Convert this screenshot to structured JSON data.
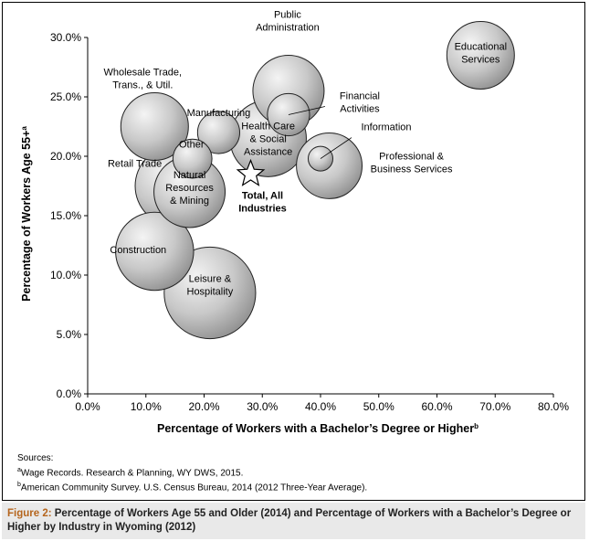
{
  "chart_data": {
    "type": "scatter",
    "variant": "bubble",
    "xlabel": "Percentage of Workers with a Bachelor’s Degree or Higher",
    "xlabel_sup": "b",
    "ylabel": "Percentage of Workers Age 55+",
    "ylabel_sup": "a",
    "xlim": [
      0,
      80
    ],
    "ylim": [
      0,
      30
    ],
    "x_ticks": [
      "0.0%",
      "10.0%",
      "20.0%",
      "30.0%",
      "40.0%",
      "50.0%",
      "60.0%",
      "70.0%",
      "80.0%"
    ],
    "y_ticks": [
      "0.0%",
      "5.0%",
      "10.0%",
      "15.0%",
      "20.0%",
      "25.0%",
      "30.0%"
    ],
    "grid": false,
    "bubble_color": "#b5b5b5",
    "points": [
      {
        "label": [
          "Educational",
          "Services"
        ],
        "x": 67.5,
        "y": 28.5,
        "size": 0.9
      },
      {
        "label": [
          "Public",
          "Administration"
        ],
        "x": 34.5,
        "y": 25.5,
        "size": 1.0
      },
      {
        "label": [
          "Wholesale Trade,",
          "Trans., & Util."
        ],
        "x": 11.5,
        "y": 22.5,
        "size": 0.9
      },
      {
        "label": [
          "Manufacturing"
        ],
        "x": 22.5,
        "y": 22.0,
        "size": 0.35
      },
      {
        "label": [
          "Financial",
          "Activities"
        ],
        "x": 34.5,
        "y": 23.5,
        "size": 0.35
      },
      {
        "label": [
          "Health Care",
          "& Social",
          "Assistance"
        ],
        "x": 31.0,
        "y": 21.5,
        "size": 1.15
      },
      {
        "label": [
          "Information"
        ],
        "x": 40.0,
        "y": 19.8,
        "size": 0.12
      },
      {
        "label": [
          "Professional &",
          "Business Services"
        ],
        "x": 41.5,
        "y": 19.2,
        "size": 0.85
      },
      {
        "label": [
          "Other"
        ],
        "x": 18.0,
        "y": 19.8,
        "size": 0.3
      },
      {
        "label": [
          "Retail Trade"
        ],
        "x": 15.0,
        "y": 17.5,
        "size": 1.25
      },
      {
        "label": [
          "Natural",
          "Resources",
          "& Mining"
        ],
        "x": 17.5,
        "y": 17.0,
        "size": 1.0
      },
      {
        "label": [
          "Construction"
        ],
        "x": 11.5,
        "y": 12.0,
        "size": 1.2
      },
      {
        "label": [
          "Leisure &",
          "Hospitality"
        ],
        "x": 21.0,
        "y": 8.5,
        "size": 1.65
      }
    ],
    "total": {
      "label": [
        "Total, All",
        "Industries"
      ],
      "x": 28.0,
      "y": 18.5,
      "marker": "star-icon"
    }
  },
  "sources": {
    "heading": "Sources:",
    "a": "Wage Records. Research & Planning, WY DWS, 2015.",
    "b": "American Community Survey. U.S. Census Bureau, 2014 (2012 Three-Year Average)."
  },
  "caption": {
    "fig": "Figure 2:",
    "text": "Percentage of Workers Age 55 and Older (2014) and Percentage of Workers with a Bachelor’s Degree or Higher by Industry in Wyoming (2012)"
  }
}
